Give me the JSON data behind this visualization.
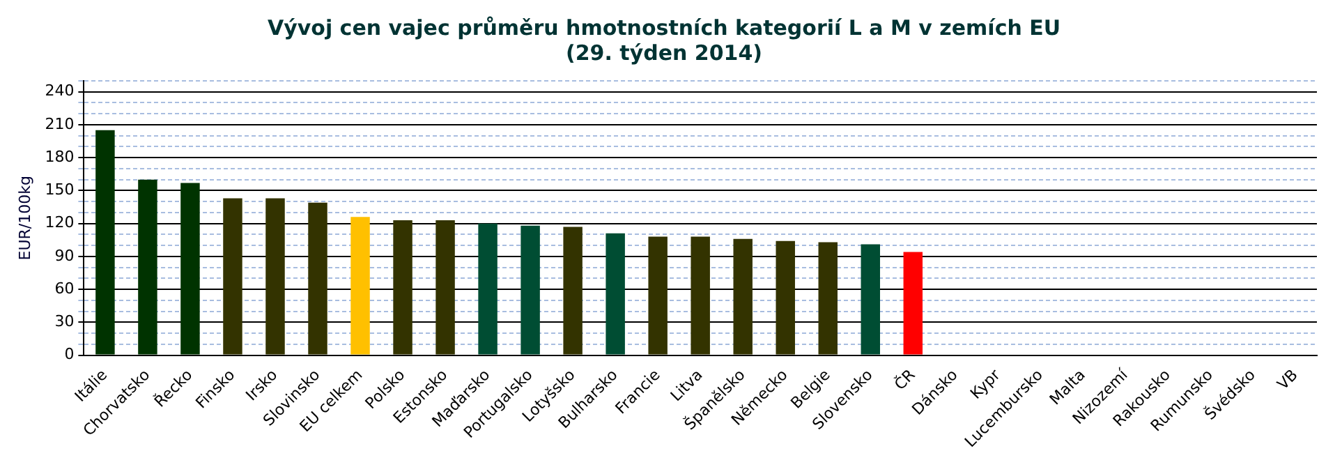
{
  "chart_data": {
    "type": "bar",
    "title": "Vývoj cen vajec průměru hmotnostních kategorií L a M v zemích EU\n(29. týden 2014)",
    "ylabel": "EUR/100kg",
    "categories": [
      "Itálie",
      "Chorvatsko",
      "Řecko",
      "Finsko",
      "Irsko",
      "Slovinsko",
      "EU celkem",
      "Polsko",
      "Estonsko",
      "Maďarsko",
      "Portugalsko",
      "Lotyšsko",
      "Bulharsko",
      "Francie",
      "Litva",
      "Španělsko",
      "Německo",
      "Belgie",
      "Slovensko",
      "ČR",
      "Dánsko",
      "Kypr",
      "Lucembursko",
      "Malta",
      "Nizozemí",
      "Rakousko",
      "Rumunsko",
      "Švédsko",
      "VB"
    ],
    "values": [
      205,
      160,
      157,
      143,
      143,
      139,
      126,
      123,
      123,
      120,
      118,
      117,
      111,
      108,
      108,
      106,
      104,
      103,
      101,
      94,
      null,
      null,
      null,
      null,
      null,
      null,
      null,
      null,
      null
    ],
    "colors": [
      "#003300",
      "#003300",
      "#003300",
      "#333300",
      "#333300",
      "#333300",
      "#ffc000",
      "#333300",
      "#333300",
      "#004d33",
      "#004d33",
      "#333300",
      "#004d33",
      "#333300",
      "#333300",
      "#333300",
      "#333300",
      "#333300",
      "#004d33",
      "#ff0000",
      "#333300",
      "#333300",
      "#333300",
      "#333300",
      "#333300",
      "#333300",
      "#333300",
      "#333300",
      "#333300"
    ],
    "ylim": [
      0,
      250
    ],
    "yticks": [
      0,
      {
        "value": 10,
        "label": null
      },
      {
        "value": 20,
        "label": null
      },
      30,
      {
        "value": 40,
        "label": null
      },
      {
        "value": 50,
        "label": null
      },
      60,
      {
        "value": 70,
        "label": null
      },
      {
        "value": 80,
        "label": null
      },
      90,
      {
        "value": 100,
        "label": null
      },
      {
        "value": 110,
        "label": null
      },
      120,
      {
        "value": 130,
        "label": null
      },
      {
        "value": 140,
        "label": null
      },
      150,
      {
        "value": 160,
        "label": null
      },
      {
        "value": 170,
        "label": null
      },
      180,
      {
        "value": 190,
        "label": null
      },
      {
        "value": 200,
        "label": null
      },
      210,
      {
        "value": 220,
        "label": null
      },
      {
        "value": 230,
        "label": null
      },
      240,
      {
        "value": 250,
        "label": null
      }
    ],
    "grid": "y"
  }
}
